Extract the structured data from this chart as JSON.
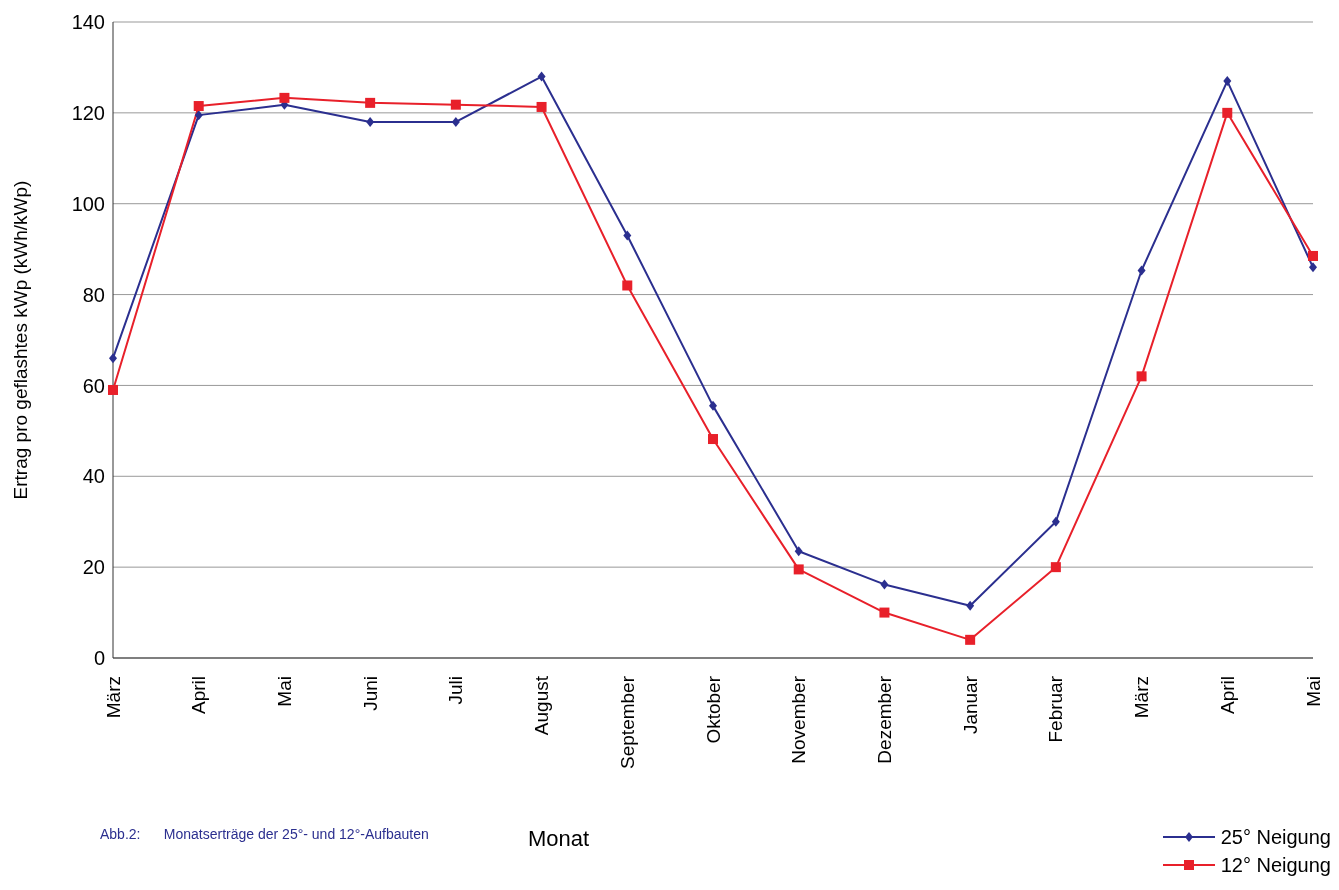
{
  "chart_data": {
    "type": "line",
    "xlabel": "Monat",
    "ylabel": "Ertrag pro geflashtes kWp (kWh/kWp)",
    "categories": [
      "März",
      "April",
      "Mai",
      "Juni",
      "Juli",
      "August",
      "September",
      "Oktober",
      "November",
      "Dezember",
      "Januar",
      "Februar",
      "März",
      "April",
      "Mai"
    ],
    "series": [
      {
        "name": "25° Neigung",
        "color": "#2b2f8f",
        "marker": "diamond",
        "values": [
          66,
          119.5,
          121.8,
          118,
          118,
          128,
          93,
          55.5,
          23.5,
          16.2,
          11.5,
          30,
          85.3,
          127,
          86
        ]
      },
      {
        "name": "12° Neigung",
        "color": "#e8202a",
        "marker": "square",
        "values": [
          59,
          121.5,
          123.3,
          122.2,
          121.8,
          121.3,
          82,
          48.2,
          19.5,
          10,
          4,
          20,
          62,
          120,
          88.5
        ]
      }
    ],
    "ylim": [
      0,
      140
    ],
    "yticks": [
      0,
      20,
      40,
      60,
      80,
      100,
      120,
      140
    ],
    "grid": "y",
    "legend": "bottom right",
    "annotations": [
      "Abb.2:      Monatserträge der 25°- und 12°-Aufbauten"
    ]
  }
}
